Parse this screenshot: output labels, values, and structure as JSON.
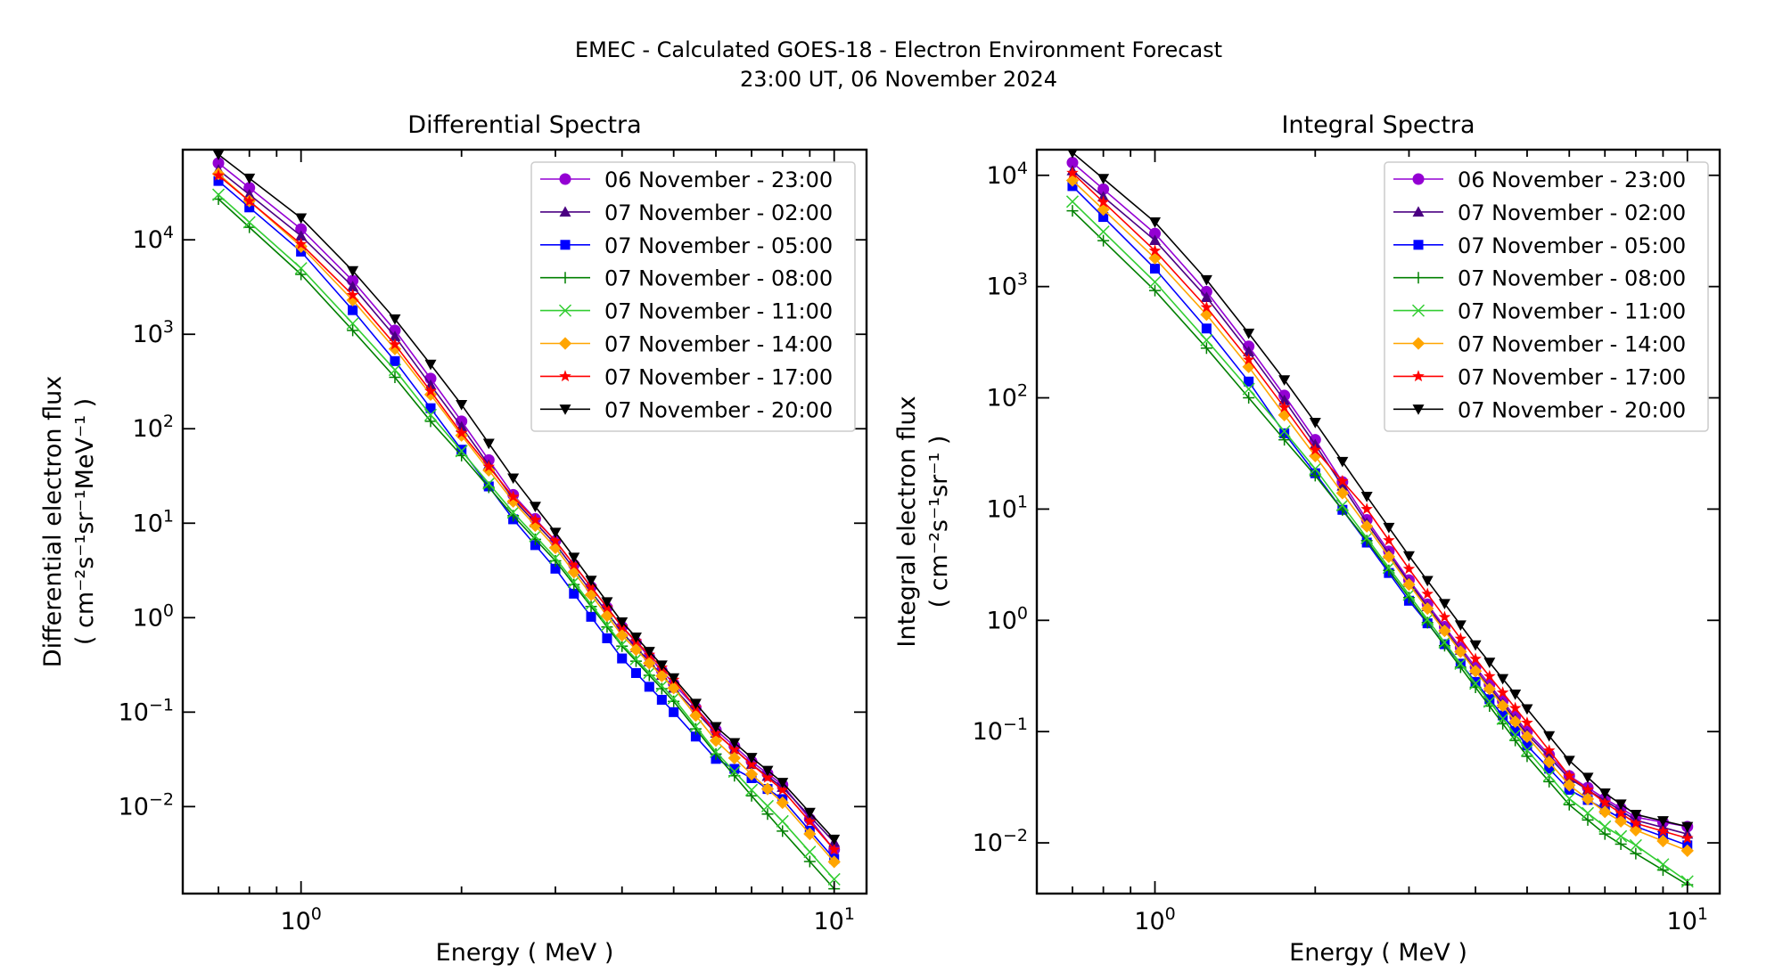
{
  "suptitle": [
    "EMEC - Calculated GOES-18 - Electron Environment Forecast",
    "23:00 UT, 06 November 2024"
  ],
  "series_style": [
    {
      "color": "#9400d3",
      "marker": "circle"
    },
    {
      "color": "#4b0082",
      "marker": "triangle-up"
    },
    {
      "color": "#0000ff",
      "marker": "square"
    },
    {
      "color": "#008000",
      "marker": "plus"
    },
    {
      "color": "#32cd32",
      "marker": "x"
    },
    {
      "color": "#ffa500",
      "marker": "diamond"
    },
    {
      "color": "#ff0000",
      "marker": "star"
    },
    {
      "color": "#000000",
      "marker": "triangle-down"
    }
  ],
  "chart_data": [
    {
      "type": "line",
      "title": "Differential Spectra",
      "xlabel": "Energy ( MeV )",
      "ylabel": [
        "Differential electron flux",
        "( cm⁻²s⁻¹sr⁻¹MeV⁻¹ )"
      ],
      "xscale": "log",
      "yscale": "log",
      "xlim": [
        0.6,
        11.5
      ],
      "ylim": [
        0.0012,
        90000
      ],
      "xticks": [
        {
          "value": 1,
          "label": "10⁰"
        },
        {
          "value": 10,
          "label": "10¹"
        }
      ],
      "yticks": [
        {
          "value": 0.01,
          "label": "10⁻²"
        },
        {
          "value": 0.1,
          "label": "10⁻¹"
        },
        {
          "value": 1,
          "label": "10⁰"
        },
        {
          "value": 10,
          "label": "10¹"
        },
        {
          "value": 100,
          "label": "10²"
        },
        {
          "value": 1000,
          "label": "10³"
        },
        {
          "value": 10000,
          "label": "10⁴"
        }
      ],
      "legend_position": "upper right",
      "series": [
        {
          "name": "06 November - 23:00",
          "anchors": [
            [
              0.7,
              65000
            ],
            [
              1,
              13000
            ],
            [
              1.25,
              3700
            ],
            [
              1.5,
              1100
            ],
            [
              1.75,
              340
            ],
            [
              2,
              120
            ],
            [
              2.5,
              20
            ],
            [
              3,
              6.5
            ],
            [
              4,
              0.8
            ],
            [
              5,
              0.2
            ],
            [
              6,
              0.065
            ],
            [
              7,
              0.03
            ],
            [
              8,
              0.017
            ],
            [
              10,
              0.0035
            ]
          ]
        },
        {
          "name": "07 November - 02:00",
          "anchors": [
            [
              0.7,
              55000
            ],
            [
              1,
              11000
            ],
            [
              1.25,
              3200
            ],
            [
              1.5,
              950
            ],
            [
              1.75,
              290
            ],
            [
              2,
              105
            ],
            [
              2.5,
              18
            ],
            [
              3,
              6
            ],
            [
              4,
              0.7
            ],
            [
              5,
              0.18
            ],
            [
              6,
              0.06
            ],
            [
              7,
              0.028
            ],
            [
              8,
              0.016
            ],
            [
              10,
              0.0042
            ]
          ]
        },
        {
          "name": "07 November - 05:00",
          "anchors": [
            [
              0.7,
              42000
            ],
            [
              1,
              7500
            ],
            [
              1.25,
              1800
            ],
            [
              1.5,
              520
            ],
            [
              1.75,
              165
            ],
            [
              2,
              60
            ],
            [
              2.5,
              11
            ],
            [
              3,
              3.3
            ],
            [
              4,
              0.37
            ],
            [
              5,
              0.1
            ],
            [
              6,
              0.032
            ],
            [
              7,
              0.02
            ],
            [
              8,
              0.012
            ],
            [
              10,
              0.0028
            ]
          ]
        },
        {
          "name": "07 November - 08:00",
          "anchors": [
            [
              0.7,
              27000
            ],
            [
              1,
              4300
            ],
            [
              1.25,
              1100
            ],
            [
              1.5,
              350
            ],
            [
              1.75,
              120
            ],
            [
              2,
              52
            ],
            [
              2.5,
              12
            ],
            [
              3,
              4
            ],
            [
              4,
              0.5
            ],
            [
              5,
              0.13
            ],
            [
              6,
              0.036
            ],
            [
              7,
              0.013
            ],
            [
              8,
              0.0055
            ],
            [
              10,
              0.00135
            ]
          ]
        },
        {
          "name": "07 November - 11:00",
          "anchors": [
            [
              0.7,
              30000
            ],
            [
              1,
              5000
            ],
            [
              1.25,
              1300
            ],
            [
              1.5,
              420
            ],
            [
              1.75,
              140
            ],
            [
              2,
              58
            ],
            [
              2.5,
              13
            ],
            [
              3,
              4.3
            ],
            [
              4,
              0.52
            ],
            [
              5,
              0.14
            ],
            [
              6,
              0.038
            ],
            [
              7,
              0.015
            ],
            [
              8,
              0.007
            ],
            [
              10,
              0.0017
            ]
          ]
        },
        {
          "name": "07 November - 14:00",
          "anchors": [
            [
              0.7,
              50000
            ],
            [
              1,
              8500
            ],
            [
              1.25,
              2300
            ],
            [
              1.5,
              700
            ],
            [
              1.75,
              230
            ],
            [
              2,
              85
            ],
            [
              2.5,
              17
            ],
            [
              3,
              5.5
            ],
            [
              4,
              0.65
            ],
            [
              5,
              0.18
            ],
            [
              6,
              0.05
            ],
            [
              7,
              0.022
            ],
            [
              8,
              0.011
            ],
            [
              10,
              0.0026
            ]
          ]
        },
        {
          "name": "07 November - 17:00",
          "anchors": [
            [
              0.7,
              48000
            ],
            [
              1,
              9000
            ],
            [
              1.25,
              2600
            ],
            [
              1.5,
              780
            ],
            [
              1.75,
              250
            ],
            [
              2,
              90
            ],
            [
              2.5,
              19
            ],
            [
              3,
              6.5
            ],
            [
              4,
              0.8
            ],
            [
              5,
              0.22
            ],
            [
              6,
              0.06
            ],
            [
              7,
              0.028
            ],
            [
              8,
              0.015
            ],
            [
              10,
              0.0035
            ]
          ]
        },
        {
          "name": "07 November - 20:00",
          "anchors": [
            [
              0.7,
              80000
            ],
            [
              1,
              17000
            ],
            [
              1.25,
              4700
            ],
            [
              1.5,
              1450
            ],
            [
              1.75,
              480
            ],
            [
              2,
              180
            ],
            [
              2.5,
              30
            ],
            [
              3,
              8
            ],
            [
              4,
              0.9
            ],
            [
              5,
              0.23
            ],
            [
              6,
              0.07
            ],
            [
              7,
              0.033
            ],
            [
              8,
              0.018
            ],
            [
              10,
              0.0045
            ]
          ]
        }
      ]
    },
    {
      "type": "line",
      "title": "Integral Spectra",
      "xlabel": "Energy ( MeV )",
      "ylabel": [
        "Integral electron flux",
        "( cm⁻²s⁻¹sr⁻¹ )"
      ],
      "xscale": "log",
      "yscale": "log",
      "xlim": [
        0.6,
        11.5
      ],
      "ylim": [
        0.0035,
        17000
      ],
      "xticks": [
        {
          "value": 1,
          "label": "10⁰"
        },
        {
          "value": 10,
          "label": "10¹"
        }
      ],
      "yticks": [
        {
          "value": 0.01,
          "label": "10⁻²"
        },
        {
          "value": 0.1,
          "label": "10⁻¹"
        },
        {
          "value": 1,
          "label": "10⁰"
        },
        {
          "value": 10,
          "label": "10¹"
        },
        {
          "value": 100,
          "label": "10²"
        },
        {
          "value": 1000,
          "label": "10³"
        },
        {
          "value": 10000,
          "label": "10⁴"
        }
      ],
      "legend_position": "upper right",
      "series": [
        {
          "name": "06 November - 23:00",
          "anchors": [
            [
              0.7,
              13000
            ],
            [
              1,
              3000
            ],
            [
              1.25,
              900
            ],
            [
              1.5,
              290
            ],
            [
              1.75,
              105
            ],
            [
              2,
              42
            ],
            [
              2.5,
              8
            ],
            [
              3,
              2.3
            ],
            [
              4,
              0.38
            ],
            [
              5,
              0.1
            ],
            [
              6,
              0.04
            ],
            [
              7,
              0.025
            ],
            [
              8,
              0.017
            ],
            [
              10,
              0.014
            ]
          ]
        },
        {
          "name": "07 November - 02:00",
          "anchors": [
            [
              0.7,
              11000
            ],
            [
              1,
              2600
            ],
            [
              1.25,
              800
            ],
            [
              1.5,
              260
            ],
            [
              1.75,
              95
            ],
            [
              2,
              38
            ],
            [
              2.5,
              7.5
            ],
            [
              3,
              2.2
            ],
            [
              4,
              0.36
            ],
            [
              5,
              0.095
            ],
            [
              6,
              0.038
            ],
            [
              7,
              0.024
            ],
            [
              8,
              0.016
            ],
            [
              10,
              0.012
            ]
          ]
        },
        {
          "name": "07 November - 05:00",
          "anchors": [
            [
              0.7,
              8000
            ],
            [
              1,
              1450
            ],
            [
              1.25,
              420
            ],
            [
              1.5,
              140
            ],
            [
              1.75,
              48
            ],
            [
              2,
              21
            ],
            [
              2.5,
              5
            ],
            [
              3,
              1.5
            ],
            [
              4,
              0.28
            ],
            [
              5,
              0.075
            ],
            [
              6,
              0.03
            ],
            [
              7,
              0.02
            ],
            [
              8,
              0.014
            ],
            [
              10,
              0.0095
            ]
          ]
        },
        {
          "name": "07 November - 08:00",
          "anchors": [
            [
              0.7,
              4800
            ],
            [
              1,
              920
            ],
            [
              1.25,
              280
            ],
            [
              1.5,
              100
            ],
            [
              1.75,
              42
            ],
            [
              2,
              20
            ],
            [
              2.5,
              5.2
            ],
            [
              3,
              1.6
            ],
            [
              4,
              0.25
            ],
            [
              5,
              0.06
            ],
            [
              6,
              0.022
            ],
            [
              7,
              0.012
            ],
            [
              8,
              0.008
            ],
            [
              10,
              0.0042
            ]
          ]
        },
        {
          "name": "07 November - 11:00",
          "anchors": [
            [
              0.7,
              5800
            ],
            [
              1,
              1100
            ],
            [
              1.25,
              330
            ],
            [
              1.5,
              120
            ],
            [
              1.75,
              50
            ],
            [
              2,
              23
            ],
            [
              2.5,
              5.5
            ],
            [
              3,
              1.7
            ],
            [
              4,
              0.27
            ],
            [
              5,
              0.068
            ],
            [
              6,
              0.025
            ],
            [
              7,
              0.014
            ],
            [
              8,
              0.0095
            ],
            [
              10,
              0.0045
            ]
          ]
        },
        {
          "name": "07 November - 14:00",
          "anchors": [
            [
              0.7,
              9000
            ],
            [
              1,
              1800
            ],
            [
              1.25,
              560
            ],
            [
              1.5,
              190
            ],
            [
              1.75,
              70
            ],
            [
              2,
              30
            ],
            [
              2.5,
              7
            ],
            [
              3,
              2.1
            ],
            [
              4,
              0.35
            ],
            [
              5,
              0.09
            ],
            [
              6,
              0.033
            ],
            [
              7,
              0.019
            ],
            [
              8,
              0.013
            ],
            [
              10,
              0.0085
            ]
          ]
        },
        {
          "name": "07 November - 17:00",
          "anchors": [
            [
              0.7,
              10500
            ],
            [
              1,
              2100
            ],
            [
              1.25,
              650
            ],
            [
              1.5,
              220
            ],
            [
              1.75,
              82
            ],
            [
              2,
              34
            ],
            [
              2.5,
              10
            ],
            [
              3,
              2.9
            ],
            [
              4,
              0.45
            ],
            [
              5,
              0.12
            ],
            [
              6,
              0.04
            ],
            [
              7,
              0.023
            ],
            [
              8,
              0.015
            ],
            [
              10,
              0.011
            ]
          ]
        },
        {
          "name": "07 November - 20:00",
          "anchors": [
            [
              0.7,
              16000
            ],
            [
              1,
              3800
            ],
            [
              1.25,
              1150
            ],
            [
              1.5,
              380
            ],
            [
              1.75,
              145
            ],
            [
              2,
              60
            ],
            [
              2.5,
              13
            ],
            [
              3,
              3.8
            ],
            [
              4,
              0.6
            ],
            [
              5,
              0.16
            ],
            [
              6,
              0.055
            ],
            [
              7,
              0.028
            ],
            [
              8,
              0.018
            ],
            [
              10,
              0.014
            ]
          ]
        }
      ]
    }
  ]
}
